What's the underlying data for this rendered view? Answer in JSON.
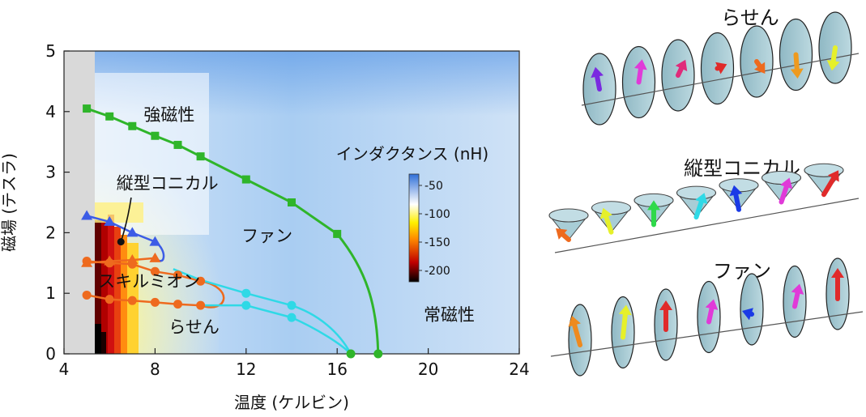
{
  "chart_data": {
    "type": "scatter",
    "xlabel": "温度 (ケルビン)",
    "ylabel": "磁場 (テスラ)",
    "xlim": [
      4,
      24
    ],
    "ylim": [
      0,
      5
    ],
    "xticks": [
      "4",
      "8",
      "12",
      "16",
      "20",
      "24"
    ],
    "yticks": [
      "0",
      "1",
      "2",
      "3",
      "4",
      "5"
    ],
    "colorbar": {
      "title": "インダクタンス (nH)",
      "range": [
        -220,
        -30
      ],
      "ticks": [
        "-50",
        "-100",
        "-150",
        "-200"
      ],
      "colors": [
        "#000000",
        "#e01010",
        "#ffe000",
        "#ffffff",
        "#2f6fd8"
      ]
    },
    "regions": [
      {
        "label": "強磁性",
        "x": 7.5,
        "y": 3.85
      },
      {
        "label": "ファン",
        "x": 11.8,
        "y": 1.85
      },
      {
        "label": "スキルミオン",
        "x": 5.5,
        "y": 1.1
      },
      {
        "label": "らせん",
        "x": 8.6,
        "y": 0.35
      },
      {
        "label": "常磁性",
        "x": 19.8,
        "y": 0.55
      }
    ],
    "annotations": [
      {
        "label": "縦型コニカル",
        "x": 6.3,
        "y": 2.72,
        "arrow_to": [
          6.5,
          1.85
        ]
      }
    ],
    "series": [
      {
        "color": "#2fb52a",
        "marker": "square",
        "x": [
          5.0,
          6.0,
          7.0,
          8.0,
          9.0,
          10.0,
          12.0,
          14.0,
          16.0
        ],
        "y": [
          4.05,
          3.92,
          3.76,
          3.6,
          3.45,
          3.26,
          2.88,
          2.5,
          1.98
        ],
        "end_x": 17.8,
        "end_y": 0.0
      },
      {
        "color": "#3c5ce6",
        "marker": "triangle",
        "x": [
          5.0,
          6.0,
          7.0,
          8.0
        ],
        "y": [
          2.28,
          2.18,
          2.0,
          1.85
        ]
      },
      {
        "color": "#ee6a1e",
        "marker": "triangle",
        "x": [
          5.0,
          6.0,
          7.0,
          8.0
        ],
        "y": [
          1.5,
          1.53,
          1.55,
          1.58
        ]
      },
      {
        "color": "#ee6a1e",
        "marker": "circle",
        "upper": {
          "x": [
            5.0,
            6.0,
            7.0,
            8.0,
            9.0,
            10.0
          ],
          "y": [
            1.53,
            1.5,
            1.48,
            1.36,
            1.3,
            1.2
          ]
        },
        "lower": {
          "x": [
            5.0,
            6.0,
            7.0,
            8.0,
            9.0,
            10.0
          ],
          "y": [
            0.97,
            0.9,
            0.88,
            0.85,
            0.82,
            0.8
          ]
        }
      },
      {
        "color": "#2fd9e6",
        "marker": "circle",
        "upper": {
          "x": [
            10.0,
            12.0,
            14.0
          ],
          "y": [
            1.22,
            1.0,
            0.8
          ]
        },
        "lower": {
          "x": [
            10.0,
            12.0,
            14.0
          ],
          "y": [
            0.8,
            0.8,
            0.6
          ]
        },
        "end_x": 16.6,
        "end_y": 0.0
      }
    ]
  },
  "spin_panels": [
    {
      "title": "らせん",
      "type": "helix",
      "arrow_colors": [
        "#7a2ae0",
        "#e03ad8",
        "#e02a7a",
        "#e02a2a",
        "#ee6a1e",
        "#ee9a1e",
        "#e6f02a"
      ]
    },
    {
      "title": "縦型コニカル",
      "type": "cone",
      "arrow_colors": [
        "#ee6a1e",
        "#e6f02a",
        "#2fd94a",
        "#2fd9e6",
        "#1a3ae6",
        "#e03ad8",
        "#e02a2a"
      ]
    },
    {
      "title": "ファン",
      "type": "fan",
      "arrow_colors": [
        "#ee8a1e",
        "#e6f02a",
        "#e02a2a",
        "#e03ad8",
        "#1a3ae6",
        "#e03ad8",
        "#e02a2a"
      ]
    }
  ]
}
